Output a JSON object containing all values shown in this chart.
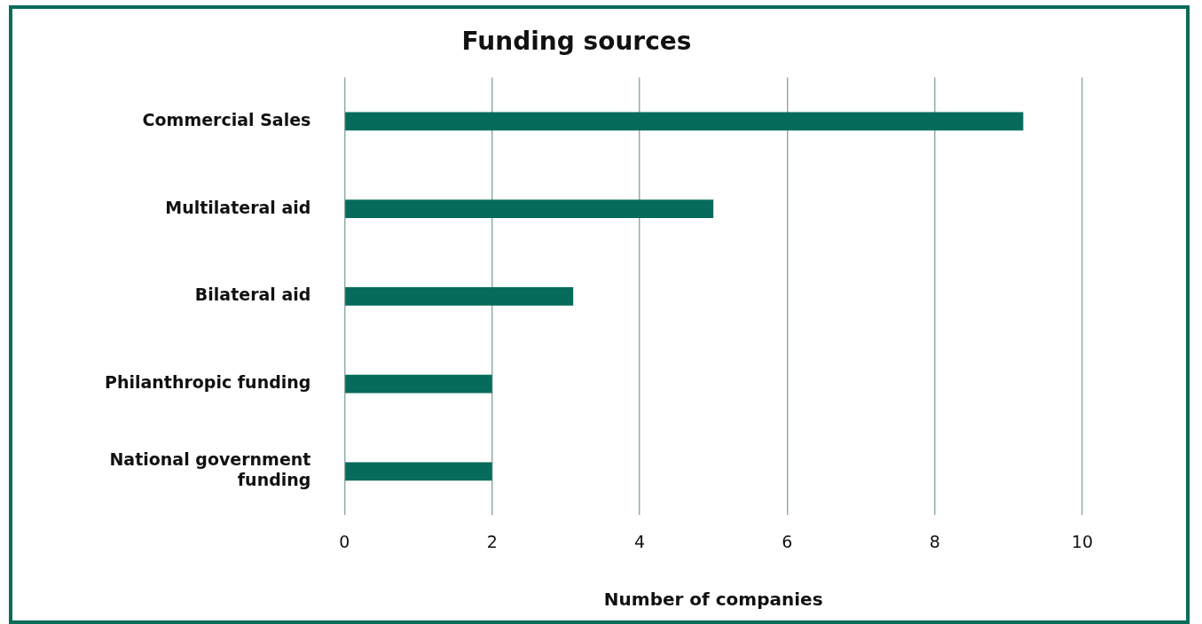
{
  "chart_data": {
    "type": "bar",
    "orientation": "horizontal",
    "title": "Funding sources",
    "xlabel": "Number of companies",
    "categories": [
      "Commercial Sales",
      "Multilateral aid",
      "Bilateral aid",
      "Philanthropic funding",
      "National government funding"
    ],
    "values": [
      9.2,
      5,
      3.1,
      2,
      2
    ],
    "color": "#066b5b",
    "xlim": [
      0,
      10
    ],
    "xticks": [
      0,
      2,
      4,
      6,
      8,
      10
    ],
    "grid": "x",
    "legend": false
  }
}
